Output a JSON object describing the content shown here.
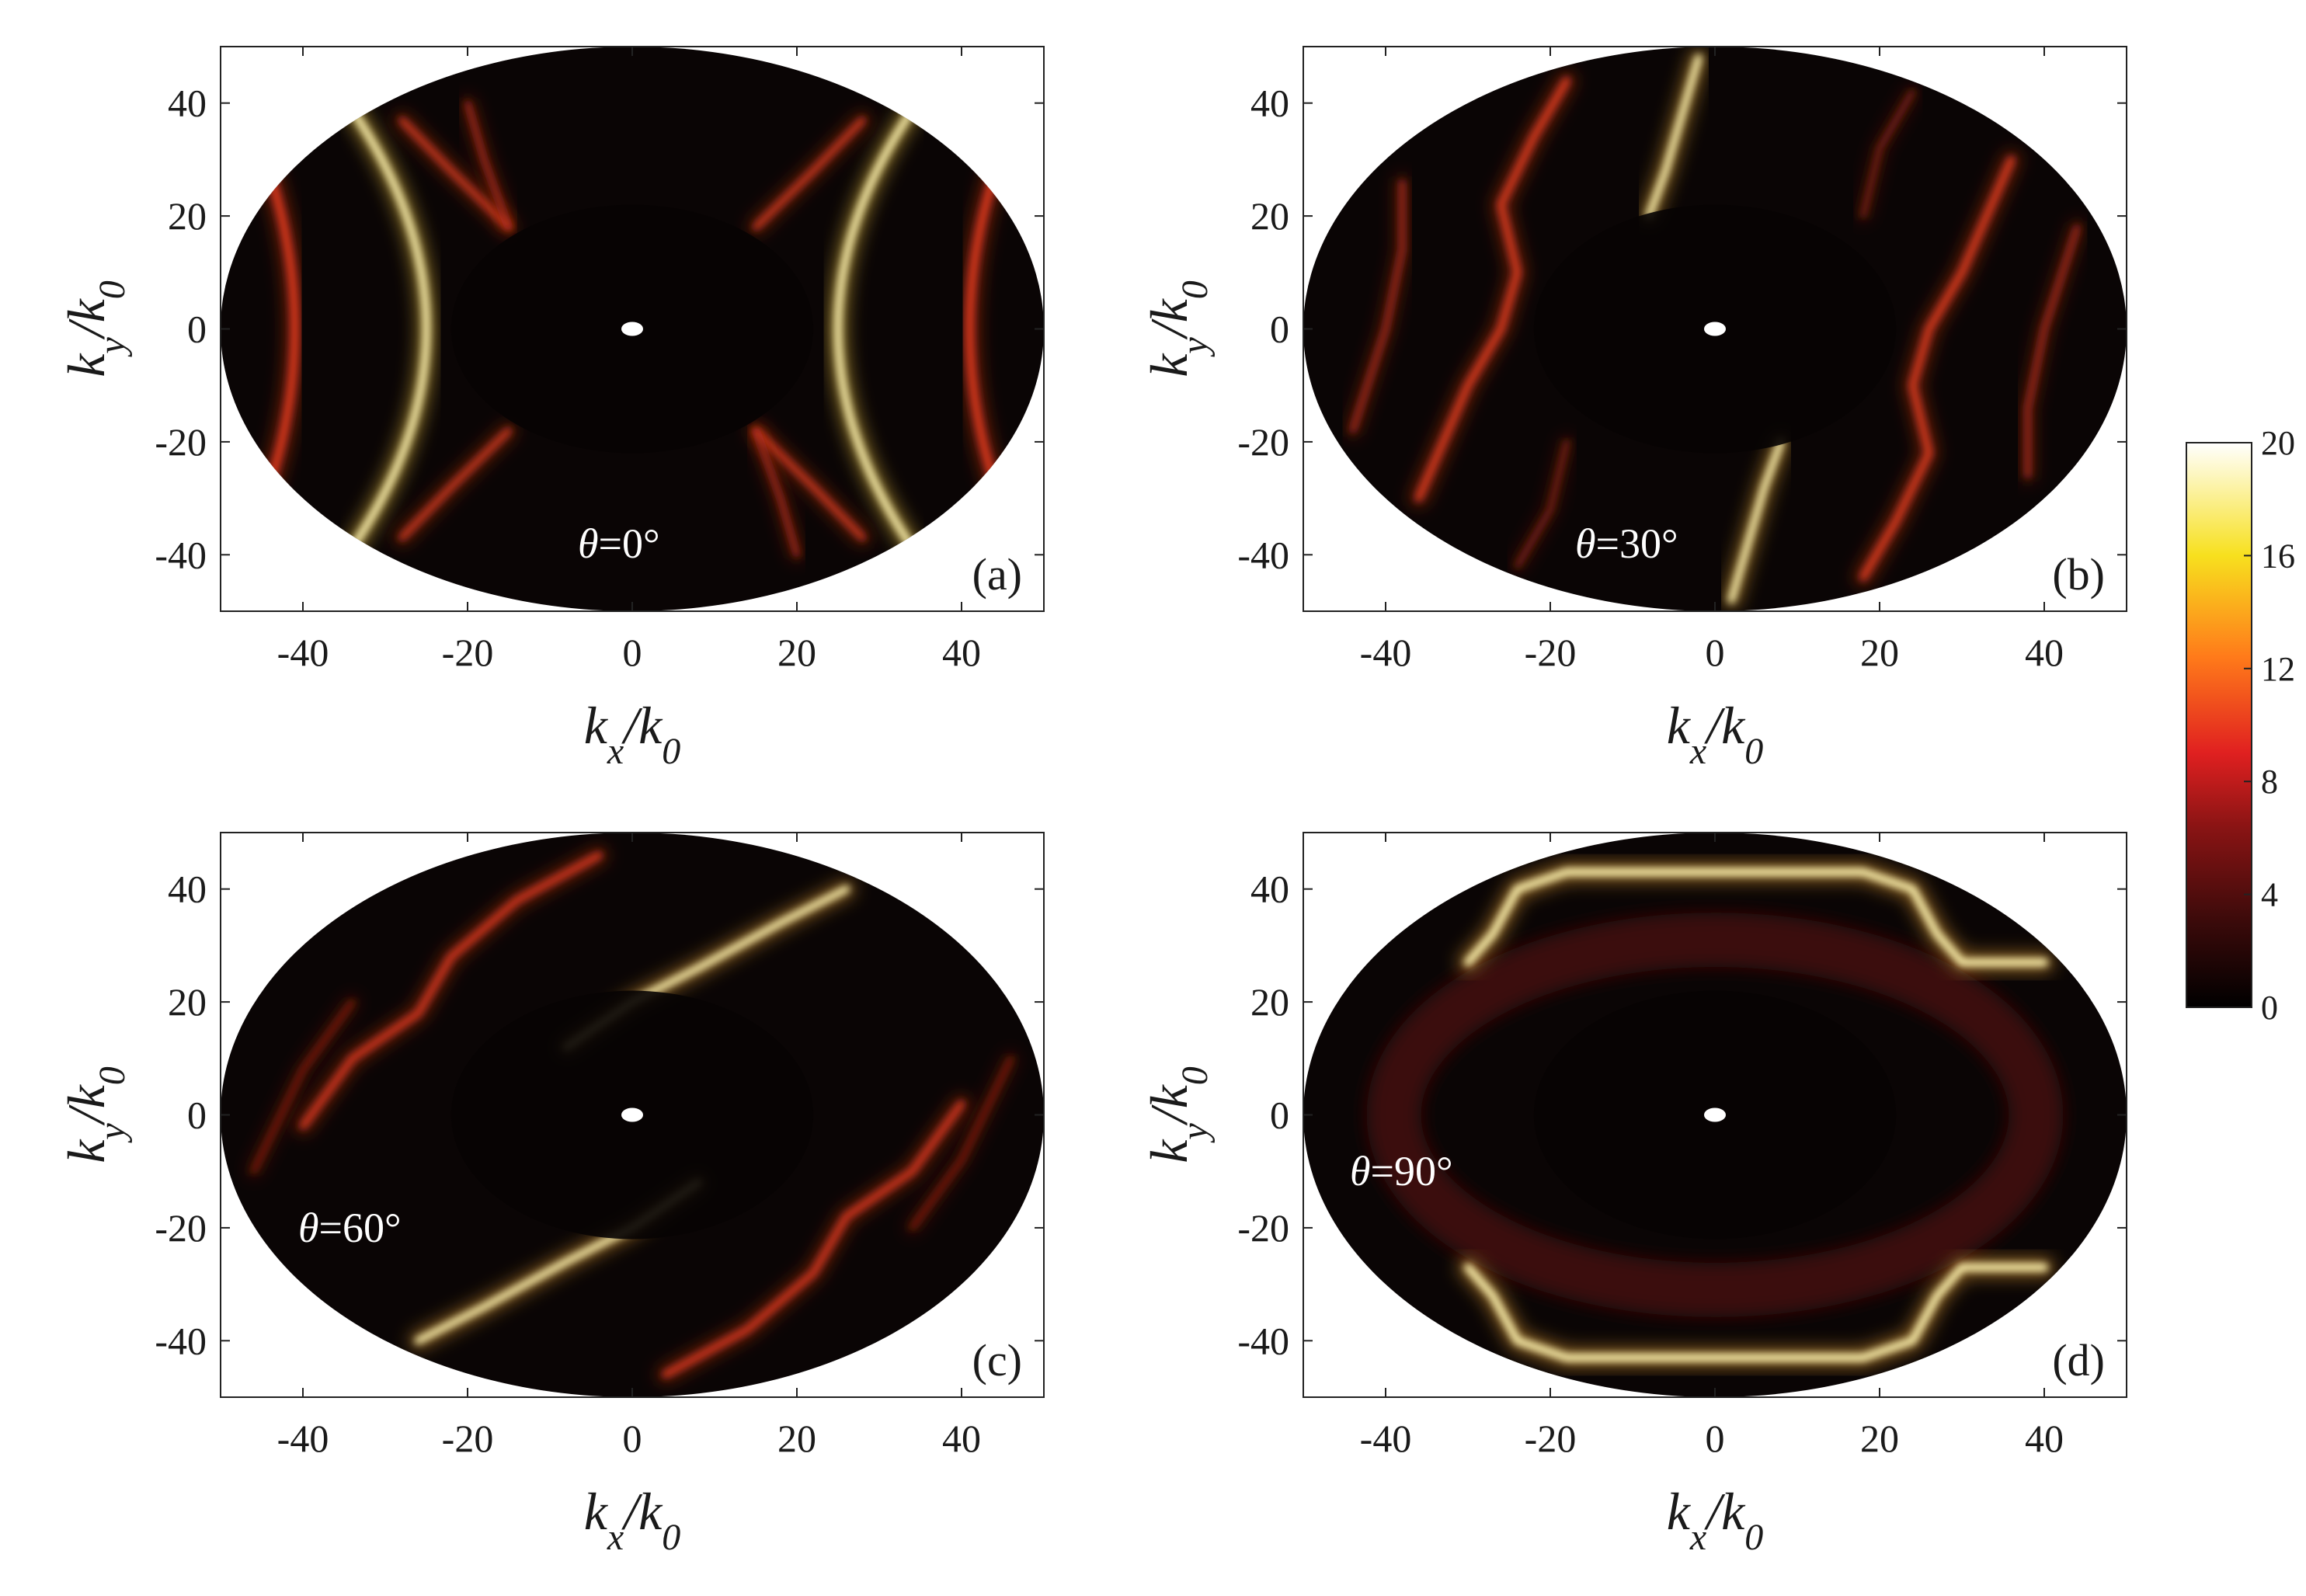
{
  "chart_data": [
    {
      "type": "heatmap",
      "panel_label": "(a)",
      "annotation": "θ=0°",
      "xlabel": {
        "main": "k",
        "sub": "x",
        "den": "/k",
        "den_sub": "0"
      },
      "ylabel": {
        "main": "k",
        "sub": "y",
        "den": "/k",
        "den_sub": "0"
      },
      "xlim": [
        -50,
        50
      ],
      "ylim": [
        -50,
        50
      ],
      "xticks": [
        -40,
        -20,
        0,
        20,
        40
      ],
      "yticks": [
        -40,
        -20,
        0,
        20,
        40
      ],
      "domain": "ellipse with |k| < 50 k0, inner dark disc of radius about 22 k0, white dot at origin",
      "features": "bright hyperbolic arcs at kx ≈ ±25 (peak ≈ 20), weaker arcs at kx ≈ ±41 and diagonal branches from (±15, ±18) outward"
    },
    {
      "type": "heatmap",
      "panel_label": "(b)",
      "annotation": "θ=30°",
      "xlabel": {
        "main": "k",
        "sub": "x",
        "den": "/k",
        "den_sub": "0"
      },
      "ylabel": {
        "main": "k",
        "sub": "y",
        "den": "/k",
        "den_sub": "0"
      },
      "xlim": [
        -50,
        50
      ],
      "ylim": [
        -50,
        50
      ],
      "xticks": [
        -40,
        -20,
        0,
        20,
        40
      ],
      "yticks": [
        -40,
        -20,
        0,
        20,
        40
      ],
      "features": "S-shaped curves rotated by about 30°, brightest near (-6, 25) and (8, -25)"
    },
    {
      "type": "heatmap",
      "panel_label": "(c)",
      "annotation": "θ=60°",
      "xlabel": {
        "main": "k",
        "sub": "x",
        "den": "/k",
        "den_sub": "0"
      },
      "ylabel": {
        "main": "k",
        "sub": "y",
        "den": "/k",
        "den_sub": "0"
      },
      "xlim": [
        -50,
        50
      ],
      "ylim": [
        -50,
        50
      ],
      "xticks": [
        -40,
        -20,
        0,
        20,
        40
      ],
      "yticks": [
        -40,
        -20,
        0,
        20,
        40
      ],
      "features": "diagonal S-shaped bands, brightest near (5, 23) and (-5, -23)"
    },
    {
      "type": "heatmap",
      "panel_label": "(d)",
      "annotation": "θ=90°",
      "xlabel": {
        "main": "k",
        "sub": "x",
        "den": "/k",
        "den_sub": "0"
      },
      "ylabel": {
        "main": "k",
        "sub": "y",
        "den": "/k",
        "den_sub": "0"
      },
      "xlim": [
        -50,
        50
      ],
      "ylim": [
        -50,
        50
      ],
      "xticks": [
        -40,
        -20,
        0,
        20,
        40
      ],
      "yticks": [
        -40,
        -20,
        0,
        20,
        40
      ],
      "features": "bright horizontal bands at ky ≈ ±43 with side steps to ky ≈ ±27 near kx ≈ ±30, faint lines at ky ≈ ±15 inside inner disc"
    }
  ],
  "colorbar": {
    "ticks": [
      "20",
      "16",
      "12",
      "8",
      "4",
      "0"
    ],
    "range": [
      0,
      20
    ],
    "colormap": [
      "#000000",
      "#3a0a0a",
      "#8a1414",
      "#e02020",
      "#ff7a1a",
      "#f7e01e",
      "#ffffff"
    ]
  },
  "colors": {
    "background": "#0a0505",
    "frame": "#222222"
  }
}
